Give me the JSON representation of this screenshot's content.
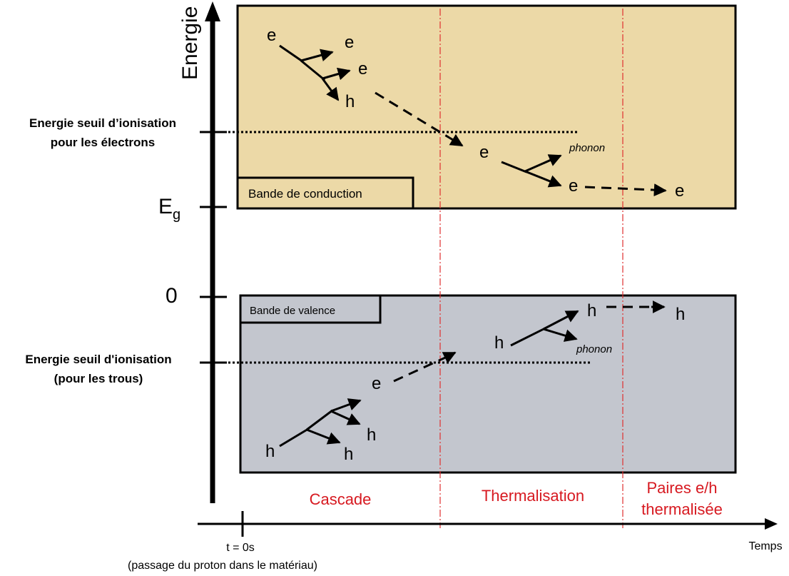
{
  "axes": {
    "y_label": "Energie",
    "x_label": "Temps",
    "t0_label": "t = 0s",
    "t0_note": "(passage du proton dans le matériau)"
  },
  "levels": {
    "electron_threshold_line1": "Energie seuil d’ionisation",
    "electron_threshold_line2": "pour les électrons",
    "eg_main": "E",
    "eg_sub": "g",
    "zero": "0",
    "hole_threshold_line1": "Energie seuil d'ionisation",
    "hole_threshold_line2": "(pour les trous)"
  },
  "bands": {
    "conduction": {
      "label": "Bande de conduction",
      "color": "#ecd9a7"
    },
    "valence": {
      "label": "Bande de valence",
      "color": "#c3c6ce"
    }
  },
  "phases": {
    "cascade": "Cascade",
    "thermalisation": "Thermalisation",
    "pairs_line1": "Paires e/h",
    "pairs_line2": "thermalisée",
    "color": "#d71920"
  },
  "particles": {
    "electron": "e",
    "hole": "h",
    "phonon": "phonon"
  }
}
